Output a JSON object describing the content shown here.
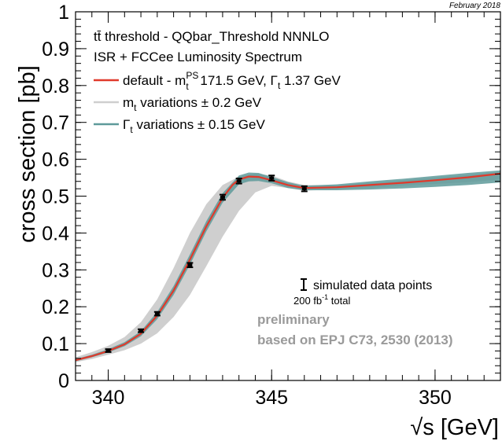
{
  "date_label": "February 2018",
  "legend": {
    "header1": "tt̄ threshold - QQbar_Threshold NNNLO",
    "header2": "ISR + FCCee Luminosity Spectrum",
    "default_label_a": "default - m",
    "default_label_sup": "PS",
    "default_label_sub": "t",
    "default_label_b": " 171.5 GeV, Γ",
    "default_label_sub2": "t",
    "default_label_c": " 1.37 GeV",
    "mt_label_a": "m",
    "mt_label_sub": "t",
    "mt_label_b": " variations ± 0.2 GeV",
    "gamma_label_a": "Γ",
    "gamma_label_sub": "t",
    "gamma_label_b": " variations ± 0.15 GeV"
  },
  "annotations": {
    "data_label": "simulated data points",
    "lumi_a": "200 fb",
    "lumi_sup": "-1",
    "lumi_b": " total",
    "prelim1": "preliminary",
    "prelim2": "based on EPJ C73, 2530 (2013)"
  },
  "colors": {
    "default": "#e0392b",
    "mt_band": "#cfcfcf",
    "gamma": "#5e9a9a",
    "data": "#000000",
    "prelim": "#9a9a9a"
  },
  "chart_data": {
    "type": "line",
    "title": "",
    "xlabel": "√s [GeV]",
    "ylabel": "cross section [pb]",
    "xlim": [
      339,
      352
    ],
    "ylim": [
      0,
      1
    ],
    "xticks": [
      340,
      345,
      350
    ],
    "yticks": [
      0,
      0.1,
      0.2,
      0.3,
      0.4,
      0.5,
      0.6,
      0.7,
      0.8,
      0.9,
      1
    ],
    "series": [
      {
        "name": "default - m_t^PS 171.5 GeV, Γ_t 1.37 GeV",
        "x": [
          339,
          339.5,
          340,
          340.5,
          341,
          341.5,
          342,
          342.5,
          343,
          343.5,
          343.8,
          344,
          344.3,
          344.6,
          345,
          345.5,
          346,
          347,
          348,
          349,
          350,
          351,
          352
        ],
        "y": [
          0.055,
          0.066,
          0.08,
          0.098,
          0.127,
          0.176,
          0.244,
          0.328,
          0.418,
          0.495,
          0.53,
          0.545,
          0.553,
          0.552,
          0.543,
          0.53,
          0.522,
          0.524,
          0.53,
          0.536,
          0.543,
          0.551,
          0.561
        ]
      },
      {
        "name": "m_t variations ± 0.2 GeV",
        "band_x": [
          339,
          339.5,
          340,
          340.5,
          341,
          341.5,
          342,
          342.5,
          343,
          343.5,
          344,
          344.5,
          345,
          345.5,
          346,
          347,
          348,
          349,
          350,
          351,
          352
        ],
        "band_low": [
          0.05,
          0.058,
          0.07,
          0.082,
          0.1,
          0.128,
          0.172,
          0.232,
          0.31,
          0.39,
          0.46,
          0.51,
          0.528,
          0.522,
          0.515,
          0.518,
          0.522,
          0.528,
          0.533,
          0.538,
          0.545
        ],
        "band_high": [
          0.063,
          0.077,
          0.094,
          0.118,
          0.158,
          0.22,
          0.305,
          0.4,
          0.478,
          0.53,
          0.553,
          0.561,
          0.556,
          0.54,
          0.53,
          0.53,
          0.536,
          0.542,
          0.55,
          0.557,
          0.565
        ]
      },
      {
        "name": "Γ_t variations ± 0.15 GeV",
        "band_x": [
          339,
          339.5,
          340,
          340.5,
          341,
          341.5,
          342,
          342.5,
          343,
          343.5,
          344,
          344.3,
          344.6,
          345,
          345.5,
          346,
          347,
          348,
          349,
          350,
          351,
          352
        ],
        "band_low": [
          0.052,
          0.063,
          0.076,
          0.093,
          0.12,
          0.166,
          0.232,
          0.314,
          0.404,
          0.482,
          0.532,
          0.54,
          0.541,
          0.535,
          0.522,
          0.516,
          0.516,
          0.518,
          0.521,
          0.525,
          0.53,
          0.537
        ],
        "band_high": [
          0.058,
          0.07,
          0.085,
          0.104,
          0.134,
          0.186,
          0.256,
          0.342,
          0.432,
          0.508,
          0.556,
          0.564,
          0.563,
          0.552,
          0.538,
          0.528,
          0.532,
          0.54,
          0.547,
          0.555,
          0.563,
          0.57
        ]
      },
      {
        "name": "simulated data points",
        "type": "scatter",
        "x": [
          340,
          341,
          341.5,
          342.5,
          343.5,
          344,
          345,
          346
        ],
        "y": [
          0.081,
          0.135,
          0.181,
          0.313,
          0.497,
          0.541,
          0.549,
          0.52
        ],
        "err": [
          0.004,
          0.004,
          0.005,
          0.006,
          0.007,
          0.007,
          0.007,
          0.007
        ]
      }
    ]
  }
}
